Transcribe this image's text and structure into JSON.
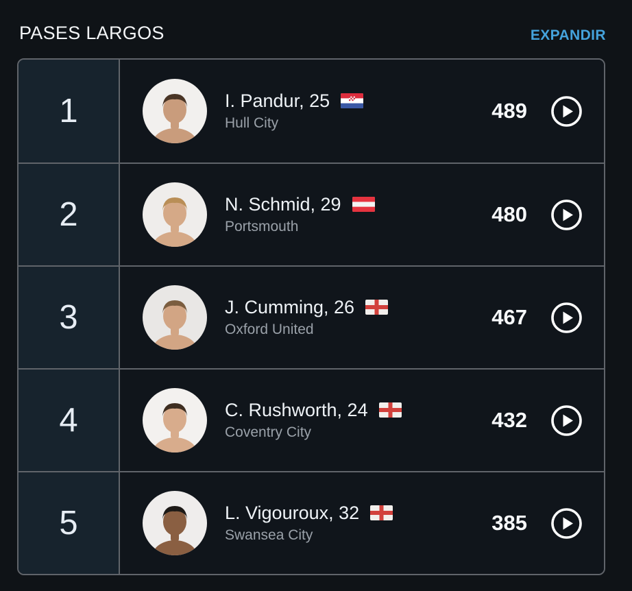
{
  "header": {
    "title": "PASES LARGOS",
    "action_label": "EXPANDIR"
  },
  "colors": {
    "page_bg": "#0f1317",
    "row_bg": "#10151b",
    "rank_cell_bg": "#17232d",
    "border": "#60646a",
    "accent_blue": "#45a3dc",
    "name_text": "#eef2f6",
    "team_text": "#9aa1a9",
    "value_text": "#f7f9fb",
    "rank_text": "#e7edf4"
  },
  "icons": {
    "play": "play-icon",
    "flags": [
      "croatia-flag-icon",
      "austria-flag-icon",
      "england-flag-icon"
    ]
  },
  "rows": [
    {
      "rank": "1",
      "name": "I. Pandur, 25",
      "team": "Hull City",
      "nationality": "Croatia",
      "flag": "croatia",
      "value": "489",
      "avatar": {
        "bg": "#f2f0ee",
        "skin": "#c99c7c",
        "hair": "#4a3526"
      }
    },
    {
      "rank": "2",
      "name": "N. Schmid, 29",
      "team": "Portsmouth",
      "nationality": "Austria",
      "flag": "austria",
      "value": "480",
      "avatar": {
        "bg": "#efedeb",
        "skin": "#d5a987",
        "hair": "#b98e56"
      }
    },
    {
      "rank": "3",
      "name": "J. Cumming, 26",
      "team": "Oxford United",
      "nationality": "England",
      "flag": "england",
      "value": "467",
      "avatar": {
        "bg": "#e9e7e5",
        "skin": "#d2a584",
        "hair": "#7b5d3f"
      }
    },
    {
      "rank": "4",
      "name": "C. Rushworth, 24",
      "team": "Coventry City",
      "nationality": "England",
      "flag": "england",
      "value": "432",
      "avatar": {
        "bg": "#f3f1ef",
        "skin": "#d8ac8c",
        "hair": "#3e2e21"
      }
    },
    {
      "rank": "5",
      "name": "L. Vigouroux, 32",
      "team": "Swansea City",
      "nationality": "England",
      "flag": "england",
      "value": "385",
      "avatar": {
        "bg": "#efedec",
        "skin": "#8a5f42",
        "hair": "#1d1a17"
      }
    }
  ]
}
